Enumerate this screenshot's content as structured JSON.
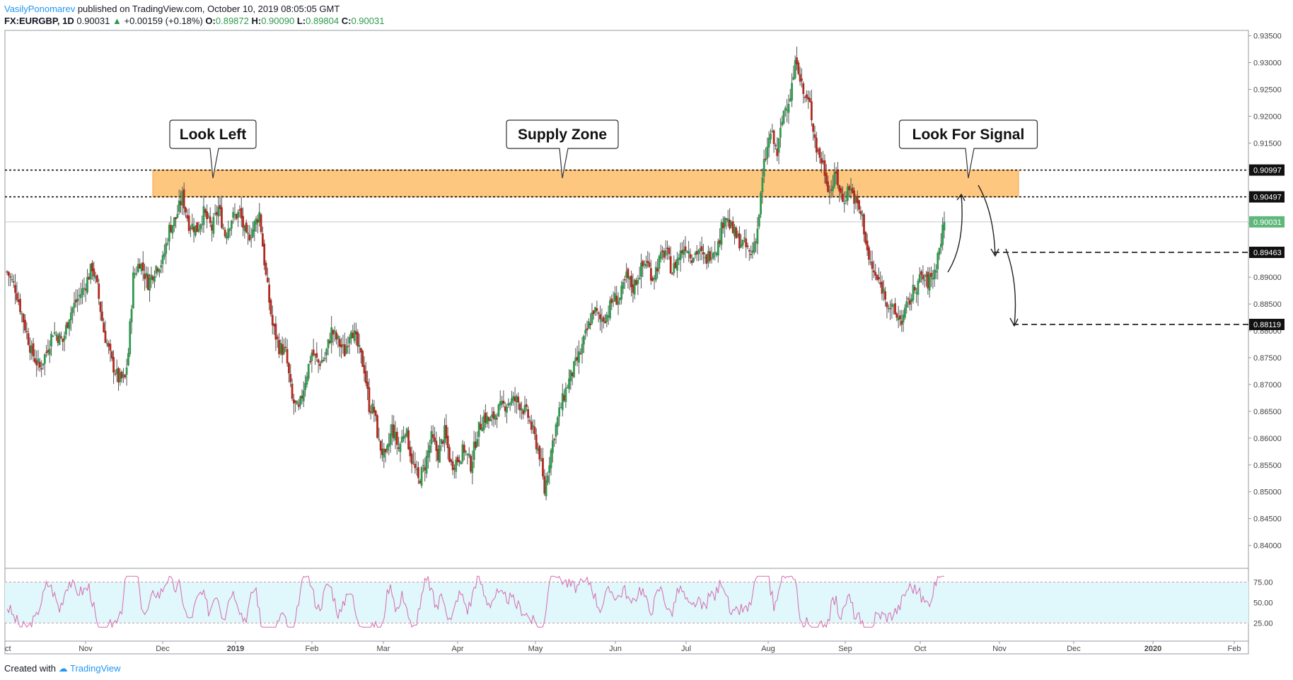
{
  "header": {
    "author": "VasilyPonomarev",
    "published": "published on TradingView.com, October 10, 2019 08:05:05 GMT",
    "symbol": "FX:EURGBP, 1D",
    "last": "0.90031",
    "change": "+0.00159 (+0.18%)",
    "o_label": "O:",
    "o_value": "0.89872",
    "h_label": "H:",
    "h_value": "0.90090",
    "l_label": "L:",
    "l_value": "0.89804",
    "c_label": "C:",
    "c_value": "0.90031"
  },
  "footer": {
    "created_with": "Created with",
    "brand": "TradingView"
  },
  "colors": {
    "up": "#2e9a4e",
    "down": "#b22a1e",
    "zone": "#fdc77f",
    "rsi": "#d56bb0",
    "rsi_band": "#e0f7fb"
  },
  "chart_data": {
    "type": "candlestick",
    "symbol": "FX:EURGBP",
    "timeframe": "1D",
    "ylim": [
      0.836,
      0.936
    ],
    "y_ticks": [
      "0.93500",
      "0.93000",
      "0.92500",
      "0.92000",
      "0.91500",
      "0.91000",
      "0.90500",
      "0.90000",
      "0.89500",
      "0.89000",
      "0.88500",
      "0.88000",
      "0.87500",
      "0.87000",
      "0.86500",
      "0.86000",
      "0.85500",
      "0.85000",
      "0.84500",
      "0.84000"
    ],
    "x_ticks": [
      "ct",
      "Nov",
      "Dec",
      "2019",
      "Feb",
      "Mar",
      "Apr",
      "May",
      "Jun",
      "Jul",
      "Aug",
      "Sep",
      "Oct",
      "Nov",
      "Dec",
      "2020",
      "Feb"
    ],
    "price_labels": [
      {
        "text": "0.90997",
        "value": 0.90997,
        "style": "dark"
      },
      {
        "text": "0.90497",
        "value": 0.90497,
        "style": "dark"
      },
      {
        "text": "0.90031",
        "value": 0.90031,
        "style": "green"
      },
      {
        "text": "0.89463",
        "value": 0.89463,
        "style": "dark"
      },
      {
        "text": "0.88119",
        "value": 0.88119,
        "style": "dark"
      }
    ],
    "zone": {
      "top": 0.90997,
      "bottom": 0.90497,
      "label": "Supply Zone"
    },
    "annotations": [
      "Look Left",
      "Supply Zone",
      "Look For Signal"
    ],
    "close_path": [
      [
        0,
        0.891
      ],
      [
        5,
        0.888
      ],
      [
        10,
        0.882
      ],
      [
        15,
        0.876
      ],
      [
        20,
        0.873
      ],
      [
        25,
        0.877
      ],
      [
        28,
        0.88
      ],
      [
        34,
        0.878
      ],
      [
        38,
        0.883
      ],
      [
        43,
        0.886
      ],
      [
        47,
        0.888
      ],
      [
        52,
        0.892
      ],
      [
        55,
        0.888
      ],
      [
        59,
        0.88
      ],
      [
        64,
        0.874
      ],
      [
        68,
        0.871
      ],
      [
        72,
        0.871
      ],
      [
        74,
        0.876
      ],
      [
        77,
        0.89
      ],
      [
        81,
        0.893
      ],
      [
        86,
        0.889
      ],
      [
        91,
        0.892
      ],
      [
        95,
        0.893
      ],
      [
        99,
        0.899
      ],
      [
        103,
        0.901
      ],
      [
        107,
        0.905
      ],
      [
        111,
        0.9
      ],
      [
        116,
        0.899
      ],
      [
        120,
        0.902
      ],
      [
        125,
        0.899
      ],
      [
        129,
        0.903
      ],
      [
        133,
        0.898
      ],
      [
        137,
        0.901
      ],
      [
        142,
        0.902
      ],
      [
        146,
        0.897
      ],
      [
        150,
        0.899
      ],
      [
        154,
        0.902
      ],
      [
        158,
        0.89
      ],
      [
        162,
        0.881
      ],
      [
        166,
        0.877
      ],
      [
        170,
        0.876
      ],
      [
        174,
        0.867
      ],
      [
        178,
        0.865
      ],
      [
        182,
        0.871
      ],
      [
        186,
        0.876
      ],
      [
        190,
        0.874
      ],
      [
        194,
        0.875
      ],
      [
        198,
        0.88
      ],
      [
        202,
        0.878
      ],
      [
        206,
        0.876
      ],
      [
        210,
        0.881
      ],
      [
        214,
        0.877
      ],
      [
        218,
        0.873
      ],
      [
        221,
        0.866
      ],
      [
        224,
        0.865
      ],
      [
        227,
        0.859
      ],
      [
        231,
        0.856
      ],
      [
        235,
        0.862
      ],
      [
        239,
        0.858
      ],
      [
        243,
        0.862
      ],
      [
        247,
        0.856
      ],
      [
        251,
        0.852
      ],
      [
        255,
        0.855
      ],
      [
        259,
        0.86
      ],
      [
        263,
        0.857
      ],
      [
        267,
        0.861
      ],
      [
        271,
        0.855
      ],
      [
        275,
        0.856
      ],
      [
        279,
        0.858
      ],
      [
        283,
        0.855
      ],
      [
        287,
        0.861
      ],
      [
        291,
        0.864
      ],
      [
        295,
        0.863
      ],
      [
        299,
        0.865
      ],
      [
        303,
        0.866
      ],
      [
        307,
        0.867
      ],
      [
        311,
        0.867
      ],
      [
        314,
        0.866
      ],
      [
        318,
        0.864
      ],
      [
        322,
        0.86
      ],
      [
        325,
        0.857
      ],
      [
        328,
        0.85
      ],
      [
        331,
        0.856
      ],
      [
        334,
        0.861
      ],
      [
        338,
        0.866
      ],
      [
        342,
        0.87
      ],
      [
        346,
        0.873
      ],
      [
        350,
        0.876
      ],
      [
        354,
        0.88
      ],
      [
        358,
        0.884
      ],
      [
        362,
        0.882
      ],
      [
        366,
        0.883
      ],
      [
        370,
        0.886
      ],
      [
        374,
        0.886
      ],
      [
        378,
        0.89
      ],
      [
        382,
        0.888
      ],
      [
        386,
        0.891
      ],
      [
        390,
        0.893
      ],
      [
        394,
        0.89
      ],
      [
        398,
        0.893
      ],
      [
        402,
        0.895
      ],
      [
        406,
        0.891
      ],
      [
        410,
        0.894
      ],
      [
        414,
        0.896
      ],
      [
        418,
        0.894
      ],
      [
        422,
        0.895
      ],
      [
        426,
        0.893
      ],
      [
        430,
        0.895
      ],
      [
        434,
        0.896
      ],
      [
        438,
        0.902
      ],
      [
        442,
        0.899
      ],
      [
        446,
        0.897
      ],
      [
        450,
        0.896
      ],
      [
        454,
        0.894
      ],
      [
        458,
        0.899
      ],
      [
        462,
        0.911
      ],
      [
        466,
        0.917
      ],
      [
        470,
        0.913
      ],
      [
        474,
        0.921
      ],
      [
        478,
        0.924
      ],
      [
        482,
        0.931
      ],
      [
        486,
        0.924
      ],
      [
        490,
        0.922
      ],
      [
        494,
        0.914
      ],
      [
        498,
        0.911
      ],
      [
        502,
        0.906
      ],
      [
        506,
        0.909
      ],
      [
        510,
        0.904
      ],
      [
        514,
        0.907
      ],
      [
        518,
        0.904
      ],
      [
        522,
        0.901
      ],
      [
        526,
        0.893
      ],
      [
        530,
        0.89
      ],
      [
        534,
        0.888
      ],
      [
        538,
        0.885
      ],
      [
        542,
        0.883
      ],
      [
        546,
        0.882
      ],
      [
        550,
        0.885
      ],
      [
        554,
        0.888
      ],
      [
        558,
        0.89
      ],
      [
        562,
        0.889
      ],
      [
        566,
        0.891
      ],
      [
        570,
        0.897
      ],
      [
        572,
        0.90031
      ]
    ],
    "rsi": {
      "ylim": [
        15,
        90
      ],
      "band": [
        25,
        75
      ],
      "ticks": [
        "75.00",
        "50.00",
        "25.00"
      ]
    }
  }
}
